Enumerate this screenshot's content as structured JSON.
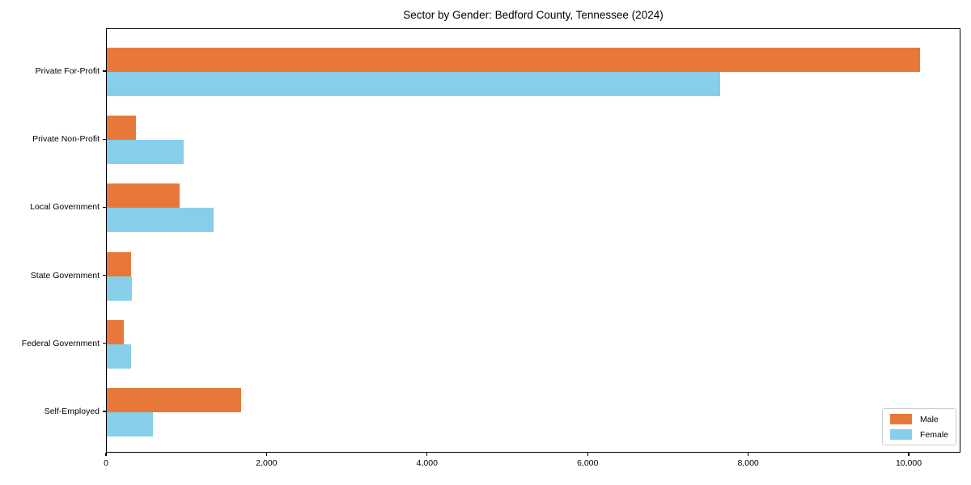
{
  "chart_data": {
    "type": "bar",
    "orientation": "horizontal",
    "title": "Sector by Gender: Bedford County, Tennessee (2024)",
    "categories": [
      "Private For-Profit",
      "Private Non-Profit",
      "Local Government",
      "State Government",
      "Federal Government",
      "Self-Employed"
    ],
    "series": [
      {
        "name": "Male",
        "color": "#e8783a",
        "values": [
          10130,
          365,
          910,
          300,
          215,
          1675
        ]
      },
      {
        "name": "Female",
        "color": "#87ceeb",
        "values": [
          7640,
          960,
          1335,
          315,
          300,
          575
        ]
      }
    ],
    "xlabel": "",
    "ylabel": "",
    "xlim": [
      0,
      10645
    ],
    "xticks": [
      0,
      2000,
      4000,
      6000,
      8000,
      10000
    ],
    "xtick_labels": [
      "0",
      "2,000",
      "4,000",
      "6,000",
      "8,000",
      "10,000"
    ],
    "grid": false,
    "legend_position": "lower right",
    "frame": true
  }
}
